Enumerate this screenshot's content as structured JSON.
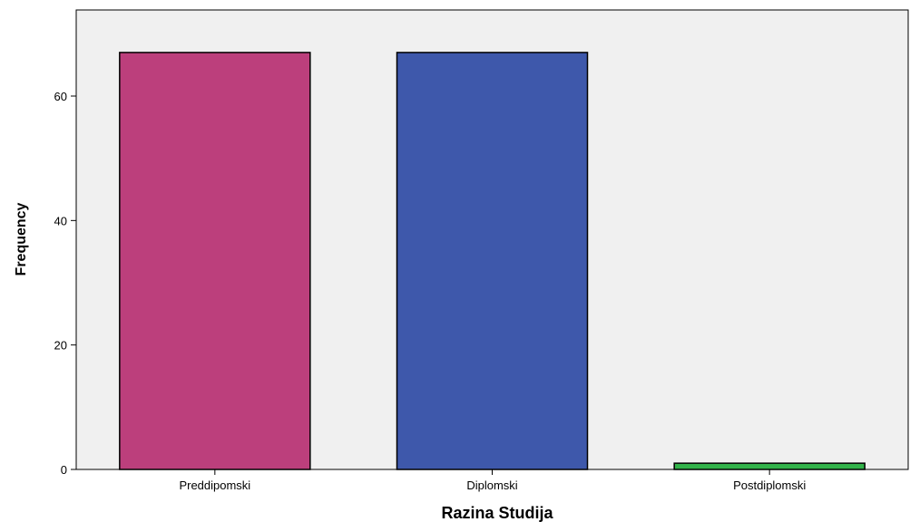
{
  "chart_data": {
    "type": "bar",
    "title": "",
    "xlabel": "Razina Studija",
    "ylabel": "Frequency",
    "categories": [
      "Preddipomski",
      "Diplomski",
      "Postdiplomski"
    ],
    "values": [
      67,
      67,
      1
    ],
    "colors": [
      "#bc3f7c",
      "#3e58ab",
      "#32b34a"
    ],
    "ylim": [
      0,
      75
    ],
    "yticks": [
      0,
      20,
      40,
      60
    ],
    "ytick_labels": [
      "0",
      "20",
      "40",
      "60"
    ],
    "grid": false,
    "legend": "none",
    "plot_background": "#f0f0f0"
  }
}
